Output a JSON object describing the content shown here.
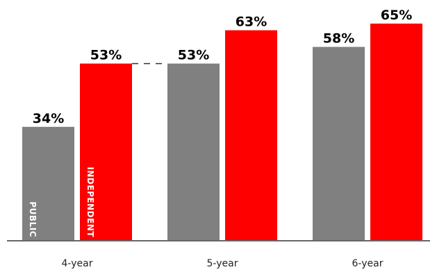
{
  "chart_data": {
    "type": "bar",
    "categories": [
      "4-year",
      "5-year",
      "6-year"
    ],
    "series": [
      {
        "name": "PUBLIC",
        "color": "#808080",
        "values": [
          34,
          53,
          58
        ],
        "labels": [
          "34%",
          "53%",
          "58%"
        ]
      },
      {
        "name": "INDEPENDENT",
        "color": "#ff0000",
        "values": [
          53,
          63,
          65
        ],
        "labels": [
          "53%",
          "63%",
          "65%"
        ]
      }
    ],
    "title": "",
    "xlabel": "",
    "ylabel": "",
    "ylim": [
      0,
      70
    ],
    "grid": false,
    "legend": "series names printed vertically inside first-category bars",
    "annotations": [
      "dashed line connecting 4-year independent (53%) to 5-year public (53%)"
    ]
  }
}
